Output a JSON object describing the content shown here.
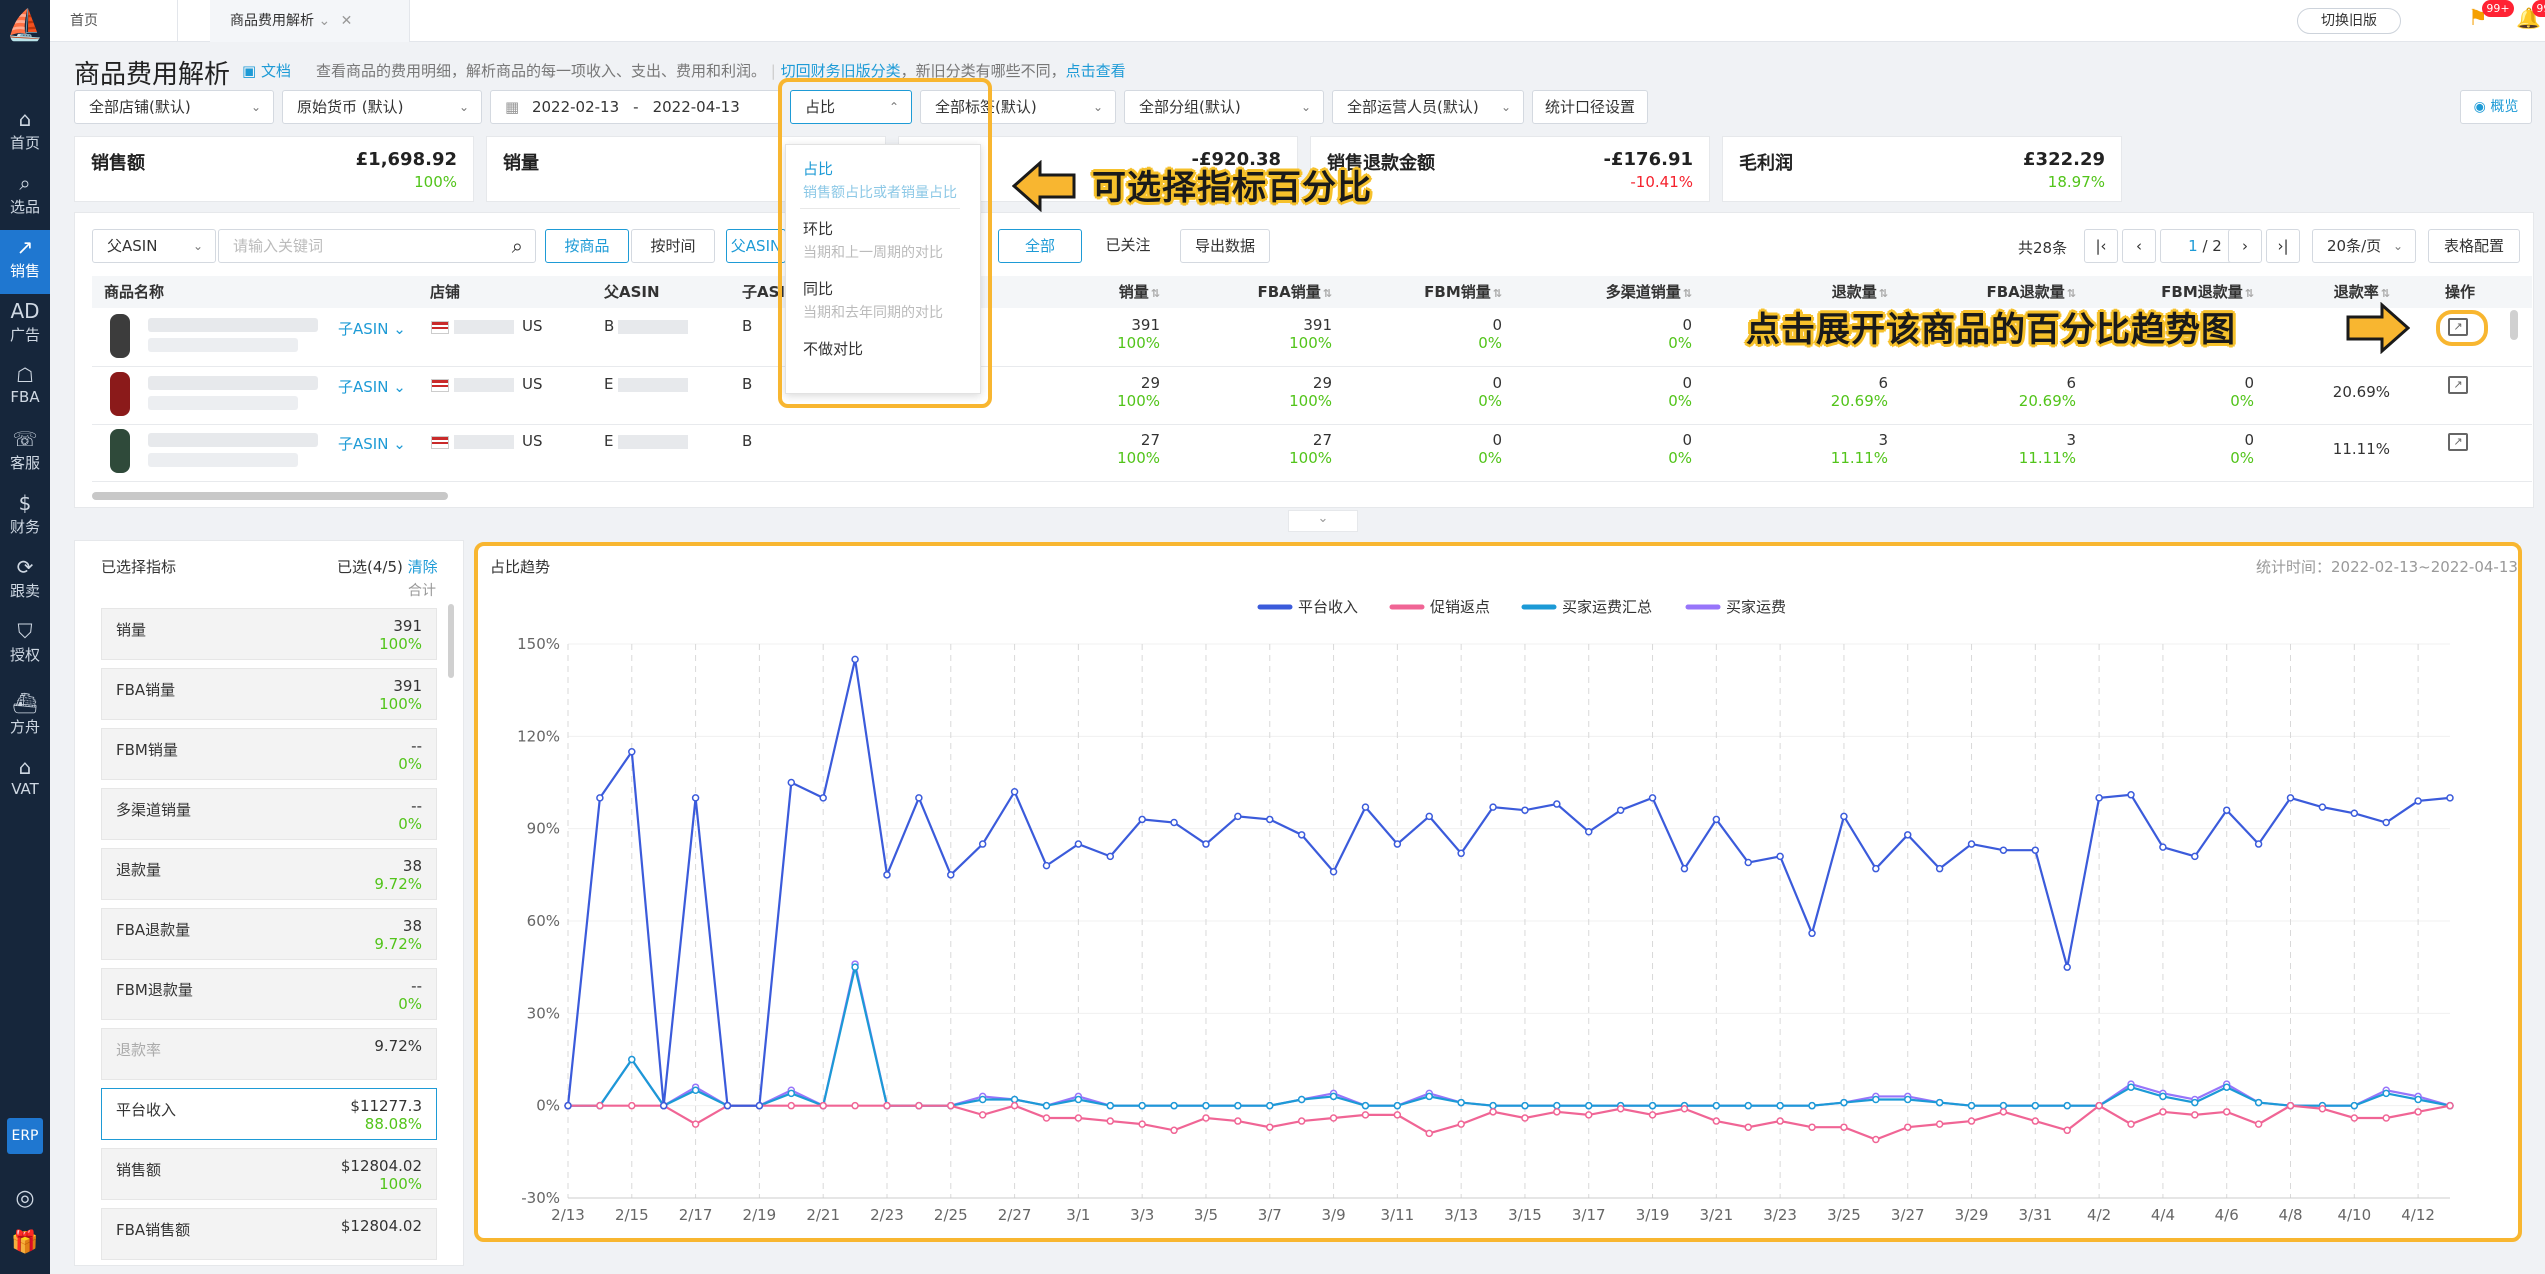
{
  "sidebar": {
    "items": [
      {
        "label": "首页",
        "icon": "⌂"
      },
      {
        "label": "选品",
        "icon": "⌕"
      },
      {
        "label": "销售",
        "icon": "↗"
      },
      {
        "label": "广告",
        "icon": "AD"
      },
      {
        "label": "FBA",
        "icon": "☖"
      },
      {
        "label": "客服",
        "icon": "☏"
      },
      {
        "label": "财务",
        "icon": "$"
      },
      {
        "label": "跟卖",
        "icon": "⟳"
      },
      {
        "label": "授权",
        "icon": "⛉"
      },
      {
        "label": "方舟",
        "icon": "⛴"
      },
      {
        "label": "VAT",
        "icon": "⌂"
      }
    ],
    "erp": "ERP",
    "bottom_icons": [
      "help-icon",
      "gift-icon"
    ]
  },
  "topbar": {
    "tabs": [
      "首页",
      "商品费用解析"
    ],
    "switch_old": "切换旧版",
    "badge1": "99+",
    "badge2": "99+"
  },
  "header": {
    "title": "商品费用解析",
    "doc": "文档",
    "desc": "查看商品的费用明细，解析商品的每一项收入、支出、费用和利润。",
    "link1": "切回财务旧版分类",
    "mid": "，新旧分类有哪些不同，",
    "link2": "点击查看"
  },
  "filters": {
    "store": "全部店铺(默认)",
    "currency": "原始货币 (默认)",
    "date_start": "2022-02-13",
    "date_sep": "-",
    "date_end": "2022-04-13",
    "compare": "占比",
    "tags": "全部标签(默认)",
    "groups": "全部分组(默认)",
    "ops": "全部运营人员(默认)",
    "caliber": "统计口径设置",
    "overview": "概览"
  },
  "compare_dropdown": [
    {
      "label": "占比",
      "sub": "销售额占比或者销量占比",
      "active": true
    },
    {
      "label": "环比",
      "sub": "当期和上一周期的对比"
    },
    {
      "label": "同比",
      "sub": "当期和去年同期的对比"
    },
    {
      "label": "不做对比",
      "sub": ""
    }
  ],
  "kpis": [
    {
      "title": "销售额",
      "value": "£1,698.92",
      "pct": "100%",
      "pct_color": "green"
    },
    {
      "title": "销量",
      "value": "",
      "pct": "",
      "pct_color": "green"
    },
    {
      "title": "",
      "value": "-£920.38",
      "pct": "",
      "pct_color": "green"
    },
    {
      "title": "销售退款金额",
      "value": "-£176.91",
      "pct": "-10.41%",
      "pct_color": "red"
    },
    {
      "title": "毛利润",
      "value": "£322.29",
      "pct": "18.97%",
      "pct_color": "green"
    }
  ],
  "toolbar": {
    "asin_select": "父ASIN",
    "search_placeholder": "请输入关键词",
    "by_product": "按商品",
    "by_time": "按时间",
    "parent_asin": "父ASIN",
    "all": "全部",
    "followed": "已关注",
    "export": "导出数据",
    "total": "共28条",
    "page_current": "1",
    "page_total": "/ 2",
    "page_size": "20条/页",
    "table_config": "表格配置"
  },
  "table": {
    "headers": [
      "商品名称",
      "店铺",
      "父ASIN",
      "子ASIN",
      "销量",
      "FBA销量",
      "FBM销量",
      "多渠道销量",
      "退款量",
      "FBA退款量",
      "FBM退款量",
      "退款率",
      "操作"
    ],
    "child_asin_link": "子ASIN",
    "rows": [
      {
        "store": "US",
        "parent": "B",
        "child": "B",
        "sales": "391",
        "sales_pct": "100%",
        "fba": "391",
        "fba_pct": "100%",
        "fbm": "0",
        "fbm_pct": "0%",
        "multi": "0",
        "multi_pct": "0%",
        "refund": "",
        "refund_pct": "",
        "fba_refund": "",
        "fba_refund_pct": "",
        "fbm_refund": "",
        "fbm_refund_pct": "",
        "rate": ""
      },
      {
        "store": "US",
        "parent": "E",
        "child": "B",
        "sales": "29",
        "sales_pct": "100%",
        "fba": "29",
        "fba_pct": "100%",
        "fbm": "0",
        "fbm_pct": "0%",
        "multi": "0",
        "multi_pct": "0%",
        "refund": "6",
        "refund_pct": "20.69%",
        "fba_refund": "6",
        "fba_refund_pct": "20.69%",
        "fbm_refund": "0",
        "fbm_refund_pct": "0%",
        "rate": "20.69%"
      },
      {
        "store": "US",
        "parent": "E",
        "child": "B",
        "sales": "27",
        "sales_pct": "100%",
        "fba": "27",
        "fba_pct": "100%",
        "fbm": "0",
        "fbm_pct": "0%",
        "multi": "0",
        "multi_pct": "0%",
        "refund": "3",
        "refund_pct": "11.11%",
        "fba_refund": "3",
        "fba_refund_pct": "11.11%",
        "fbm_refund": "0",
        "fbm_refund_pct": "0%",
        "rate": "11.11%"
      }
    ]
  },
  "annotations": {
    "a1": "可选择指标百分比",
    "a2": "点击展开该商品的百分比趋势图"
  },
  "metrics_panel": {
    "title": "已选择指标",
    "selected": "已选(4/5)",
    "clear": "清除",
    "total_label": "合计",
    "items": [
      {
        "name": "销量",
        "value": "391",
        "pct": "100%"
      },
      {
        "name": "FBA销量",
        "value": "391",
        "pct": "100%"
      },
      {
        "name": "FBM销量",
        "value": "--",
        "pct": "0%"
      },
      {
        "name": "多渠道销量",
        "value": "--",
        "pct": "0%"
      },
      {
        "name": "退款量",
        "value": "38",
        "pct": "9.72%"
      },
      {
        "name": "FBA退款量",
        "value": "38",
        "pct": "9.72%"
      },
      {
        "name": "FBM退款量",
        "value": "--",
        "pct": "0%"
      },
      {
        "name": "退款率",
        "value": "9.72%",
        "pct": ""
      },
      {
        "name": "平台收入",
        "value": "$11277.3",
        "pct": "88.08%",
        "selected": true
      },
      {
        "name": "销售额",
        "value": "$12804.02",
        "pct": "100%"
      },
      {
        "name": "FBA销售额",
        "value": "$12804.02",
        "pct": ""
      }
    ]
  },
  "chart_panel": {
    "title": "占比趋势",
    "stat_time": "统计时间：2022-02-13~2022-04-13"
  },
  "chart_data": {
    "type": "line",
    "x": [
      "2/13",
      "2/14",
      "2/15",
      "2/16",
      "2/17",
      "2/18",
      "2/19",
      "2/20",
      "2/21",
      "2/22",
      "2/23",
      "2/24",
      "2/25",
      "2/26",
      "2/27",
      "2/28",
      "3/1",
      "3/2",
      "3/3",
      "3/4",
      "3/5",
      "3/6",
      "3/7",
      "3/8",
      "3/9",
      "3/10",
      "3/11",
      "3/12",
      "3/13",
      "3/14",
      "3/15",
      "3/16",
      "3/17",
      "3/18",
      "3/19",
      "3/20",
      "3/21",
      "3/22",
      "3/23",
      "3/24",
      "3/25",
      "3/26",
      "3/27",
      "3/28",
      "3/29",
      "3/30",
      "3/31",
      "4/1",
      "4/2",
      "4/3",
      "4/4",
      "4/5",
      "4/6",
      "4/7",
      "4/8",
      "4/9",
      "4/10",
      "4/11",
      "4/12",
      "4/13"
    ],
    "x_ticks": [
      "2/13",
      "2/15",
      "2/17",
      "2/19",
      "2/21",
      "2/23",
      "2/25",
      "2/27",
      "3/1",
      "3/3",
      "3/5",
      "3/7",
      "3/9",
      "3/11",
      "3/13",
      "3/15",
      "3/17",
      "3/19",
      "3/21",
      "3/23",
      "3/25",
      "3/27",
      "3/29",
      "3/31",
      "4/2",
      "4/4",
      "4/6",
      "4/8",
      "4/10",
      "4/12"
    ],
    "ylim": [
      -30,
      150
    ],
    "y_ticks": [
      -30,
      0,
      30,
      60,
      90,
      120,
      150
    ],
    "y_unit": "%",
    "legend_position": "top-center",
    "series": [
      {
        "name": "平台收入",
        "color": "#3b5bdb",
        "values": [
          0,
          100,
          115,
          0,
          100,
          0,
          0,
          105,
          100,
          145,
          75,
          100,
          75,
          85,
          102,
          78,
          85,
          81,
          93,
          92,
          85,
          94,
          93,
          88,
          76,
          97,
          85,
          94,
          82,
          97,
          96,
          98,
          89,
          96,
          100,
          77,
          93,
          79,
          81,
          56,
          94,
          77,
          88,
          77,
          85,
          83,
          83,
          45,
          100,
          101,
          84,
          81,
          96,
          85,
          100,
          97,
          95,
          92,
          99,
          100
        ]
      },
      {
        "name": "促销返点",
        "color": "#f06595",
        "values": [
          0,
          0,
          0,
          0,
          -6,
          0,
          0,
          0,
          0,
          0,
          0,
          0,
          0,
          -3,
          0,
          -4,
          -4,
          -5,
          -6,
          -8,
          -4,
          -5,
          -7,
          -5,
          -4,
          -3,
          -3,
          -9,
          -6,
          -2,
          -4,
          -2,
          -3,
          -1,
          -3,
          -1,
          -5,
          -7,
          -5,
          -7,
          -7,
          -11,
          -7,
          -6,
          -5,
          -2,
          -5,
          -8,
          0,
          -6,
          -2,
          -3,
          -2,
          -6,
          0,
          -1,
          -4,
          -4,
          -2,
          0
        ]
      },
      {
        "name": "买家运费汇总",
        "color": "#1c9ad6",
        "values": [
          0,
          0,
          15,
          0,
          5,
          0,
          0,
          4,
          0,
          45,
          0,
          0,
          0,
          2,
          2,
          0,
          2,
          0,
          0,
          0,
          0,
          0,
          0,
          2,
          3,
          0,
          0,
          3,
          1,
          0,
          0,
          0,
          0,
          0,
          0,
          0,
          0,
          0,
          0,
          0,
          1,
          2,
          2,
          1,
          0,
          0,
          0,
          0,
          0,
          6,
          3,
          1,
          6,
          1,
          0,
          0,
          0,
          4,
          2,
          0
        ]
      },
      {
        "name": "买家运费",
        "color": "#9775fa",
        "values": [
          0,
          0,
          15,
          0,
          6,
          0,
          0,
          5,
          0,
          46,
          0,
          0,
          0,
          3,
          2,
          0,
          3,
          0,
          0,
          0,
          0,
          0,
          0,
          2,
          4,
          0,
          0,
          4,
          1,
          0,
          0,
          0,
          0,
          0,
          0,
          0,
          0,
          0,
          0,
          0,
          1,
          3,
          3,
          1,
          0,
          0,
          0,
          0,
          0,
          7,
          4,
          2,
          7,
          1,
          0,
          0,
          0,
          5,
          3,
          0
        ]
      }
    ]
  }
}
